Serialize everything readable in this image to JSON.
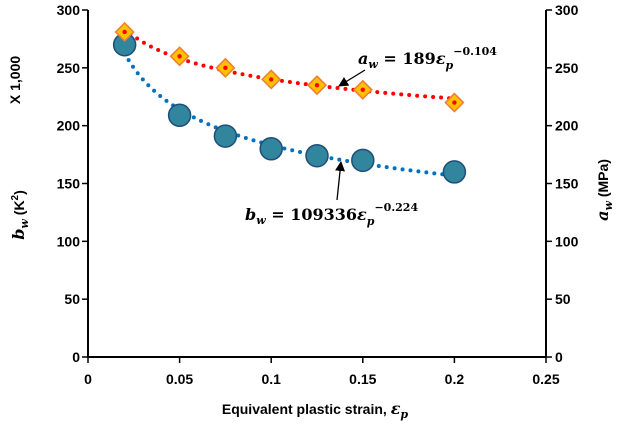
{
  "chart_data": {
    "type": "scatter",
    "xlabel": "Equivalent plastic strain, ",
    "xlabel_symbol": "ε",
    "xlabel_subscript": "p",
    "ylabel_left": {
      "symbol": "b",
      "subscript": "w",
      "unit": " (K",
      "unit_sup": "2",
      "unit_close": ")"
    },
    "ylabel_right": {
      "symbol": "a",
      "subscript": "w",
      "unit": " (MPa)"
    },
    "left_multiplier_label": "X 1,000",
    "xlim": [
      0,
      0.25
    ],
    "ylim": [
      0,
      300
    ],
    "x_ticks": [
      "0",
      "0.05",
      "0.1",
      "0.15",
      "0.2",
      "0.25"
    ],
    "y_ticks_left": [
      "0",
      "50",
      "100",
      "150",
      "200",
      "250",
      "300"
    ],
    "y_ticks_right": [
      "0",
      "50",
      "100",
      "150",
      "200",
      "250",
      "300"
    ],
    "grid": false,
    "series": [
      {
        "axis": "left",
        "marker": "circle",
        "color": "#31859C",
        "edge": "#1F4E79",
        "trend_color": "#0070C0",
        "x": [
          0.02,
          0.05,
          0.075,
          0.1,
          0.125,
          0.15,
          0.2
        ],
        "y": [
          270,
          209,
          191,
          180,
          174,
          170,
          160
        ],
        "trend": {
          "coef": 109.336,
          "exp": -0.224
        }
      },
      {
        "axis": "right",
        "marker": "diamond",
        "color": "#FFC000",
        "edge": "#ED7D31",
        "trend_color": "#FF0000",
        "x": [
          0.02,
          0.05,
          0.075,
          0.1,
          0.125,
          0.15,
          0.2
        ],
        "y": [
          281,
          260,
          250,
          240,
          235,
          231,
          220
        ],
        "trend": {
          "coef": 189,
          "exp": -0.104
        }
      }
    ],
    "annotations": [
      {
        "lhs": "a",
        "lhs_sub": "w",
        "eq": " = 189",
        "var": "ε",
        "var_sub": "p",
        "sup": "−0.104",
        "target": [
          0.137,
          235
        ]
      },
      {
        "lhs": "b",
        "lhs_sub": "w",
        "eq": " = 109336",
        "var": "ε",
        "var_sub": "p",
        "sup": "−0.224",
        "target": [
          0.137,
          172
        ]
      }
    ]
  }
}
